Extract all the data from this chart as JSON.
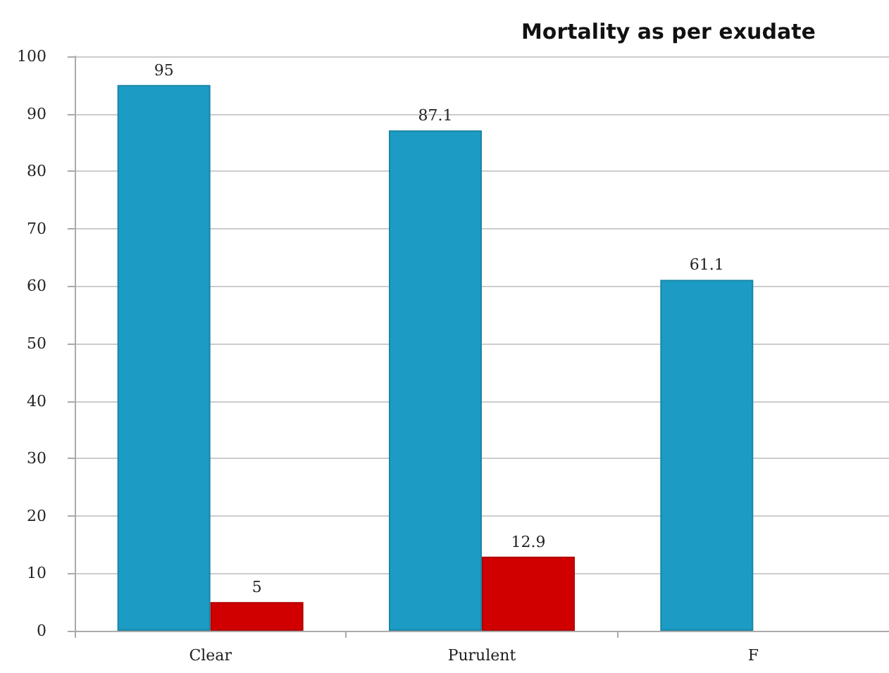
{
  "chart_data": {
    "type": "bar",
    "title": "Mortality as per exudate",
    "categories": [
      "Clear",
      "Purulent",
      "F"
    ],
    "series": [
      {
        "color": "#1c9cc4",
        "values": [
          95,
          87.1,
          61.1
        ]
      },
      {
        "color": "#d00000",
        "values": [
          5,
          12.9,
          null
        ]
      }
    ],
    "ylim": [
      0,
      100
    ],
    "yticks": [
      0,
      10,
      20,
      30,
      40,
      50,
      60,
      70,
      80,
      90,
      100
    ],
    "grid": "y",
    "data_labels": true
  }
}
